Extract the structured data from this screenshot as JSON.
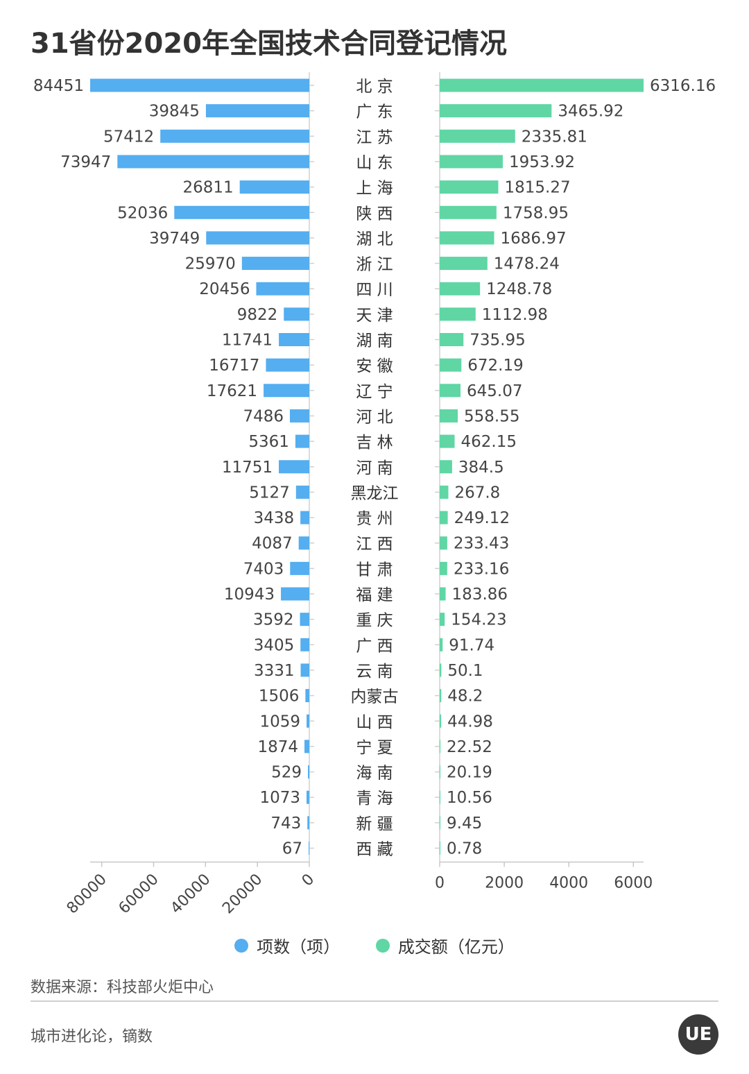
{
  "title": "31省份2020年全国技术合同登记情况",
  "source": "数据来源：科技部火炬中心",
  "credit": "城市进化论，镝数",
  "logo_text": "UE",
  "colors": {
    "left": "#54aef0",
    "right": "#5fd6a4"
  },
  "chart_data": {
    "type": "bar",
    "categories": [
      "北 京",
      "广 东",
      "江 苏",
      "山 东",
      "上 海",
      "陕 西",
      "湖 北",
      "浙 江",
      "四 川",
      "天 津",
      "湖 南",
      "安 徽",
      "辽 宁",
      "河 北",
      "吉 林",
      "河 南",
      "黑龙江",
      "贵 州",
      "江 西",
      "甘 肃",
      "福 建",
      "重 庆",
      "广 西",
      "云 南",
      "内蒙古",
      "山 西",
      "宁 夏",
      "海 南",
      "青 海",
      "新 疆",
      "西 藏"
    ],
    "series": [
      {
        "name": "项数（项）",
        "values": [
          84451,
          39845,
          57412,
          73947,
          26811,
          52036,
          39749,
          25970,
          20456,
          9822,
          11741,
          16717,
          17621,
          7486,
          5361,
          11751,
          5127,
          3438,
          4087,
          7403,
          10943,
          3592,
          3405,
          3331,
          1506,
          1059,
          1874,
          529,
          1073,
          743,
          67
        ],
        "labels": [
          "84451",
          "39845",
          "57412",
          "73947",
          "26811",
          "52036",
          "39749",
          "25970",
          "20456",
          "9822",
          "11741",
          "16717",
          "17621",
          "7486",
          "5361",
          "11751",
          "5127",
          "3438",
          "4087",
          "7403",
          "10943",
          "3592",
          "3405",
          "3331",
          "1506",
          "1059",
          "1874",
          "529",
          "1073",
          "743",
          "67"
        ],
        "xlim": [
          0,
          84451
        ],
        "ticks": [
          80000,
          60000,
          40000,
          20000,
          0
        ]
      },
      {
        "name": "成交额（亿元）",
        "values": [
          6316.16,
          3465.92,
          2335.81,
          1953.92,
          1815.27,
          1758.95,
          1686.97,
          1478.24,
          1248.78,
          1112.98,
          735.95,
          672.19,
          645.07,
          558.55,
          462.15,
          384.5,
          267.8,
          249.12,
          233.43,
          233.16,
          183.86,
          154.23,
          91.74,
          50.1,
          48.2,
          44.98,
          22.52,
          20.19,
          10.56,
          9.45,
          0.78
        ],
        "labels": [
          "6316.16",
          "3465.92",
          "2335.81",
          "1953.92",
          "1815.27",
          "1758.95",
          "1686.97",
          "1478.24",
          "1248.78",
          "1112.98",
          "735.95",
          "672.19",
          "645.07",
          "558.55",
          "462.15",
          "384.5",
          "267.8",
          "249.12",
          "233.43",
          "233.16",
          "183.86",
          "154.23",
          "91.74",
          "50.1",
          "48.2",
          "44.98",
          "22.52",
          "20.19",
          "10.56",
          "9.45",
          "0.78"
        ],
        "xlim": [
          0,
          6316.16
        ],
        "ticks": [
          0,
          2000,
          4000,
          6000
        ]
      }
    ]
  }
}
